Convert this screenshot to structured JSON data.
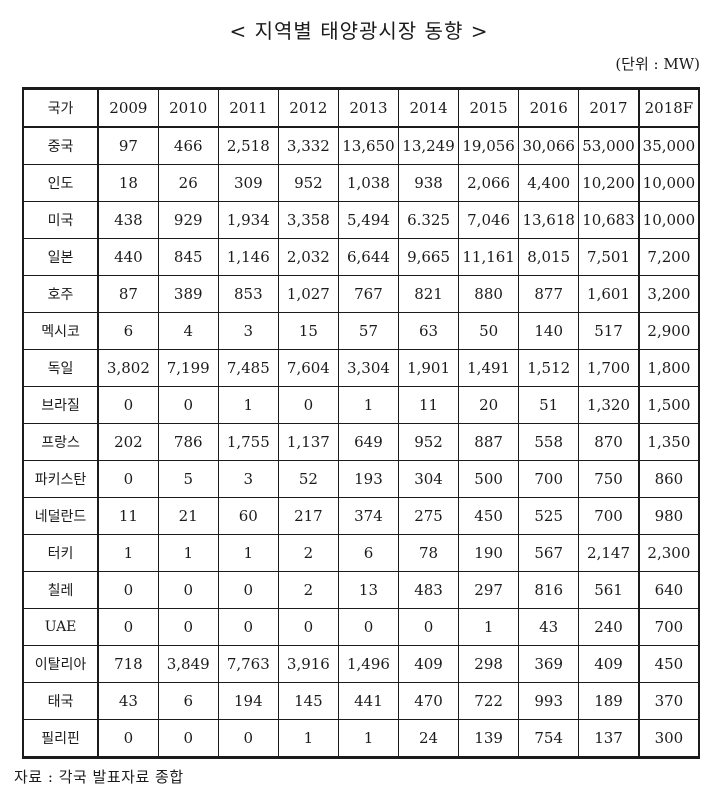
{
  "title": "< 지역별 태양광시장 동향 >",
  "unit_label": "(단위 : MW)",
  "source_note": "자료 : 각국 발표자료 종합",
  "table": {
    "columns": [
      "국가",
      "2009",
      "2010",
      "2011",
      "2012",
      "2013",
      "2014",
      "2015",
      "2016",
      "2017",
      "2018F"
    ],
    "rows": [
      {
        "country": "중국",
        "values": [
          "97",
          "466",
          "2,518",
          "3,332",
          "13,650",
          "13,249",
          "19,056",
          "30,066",
          "53,000",
          "35,000"
        ]
      },
      {
        "country": "인도",
        "values": [
          "18",
          "26",
          "309",
          "952",
          "1,038",
          "938",
          "2,066",
          "4,400",
          "10,200",
          "10,000"
        ]
      },
      {
        "country": "미국",
        "values": [
          "438",
          "929",
          "1,934",
          "3,358",
          "5,494",
          "6.325",
          "7,046",
          "13,618",
          "10,683",
          "10,000"
        ]
      },
      {
        "country": "일본",
        "values": [
          "440",
          "845",
          "1,146",
          "2,032",
          "6,644",
          "9,665",
          "11,161",
          "8,015",
          "7,501",
          "7,200"
        ]
      },
      {
        "country": "호주",
        "values": [
          "87",
          "389",
          "853",
          "1,027",
          "767",
          "821",
          "880",
          "877",
          "1,601",
          "3,200"
        ]
      },
      {
        "country": "멕시코",
        "values": [
          "6",
          "4",
          "3",
          "15",
          "57",
          "63",
          "50",
          "140",
          "517",
          "2,900"
        ]
      },
      {
        "country": "독일",
        "values": [
          "3,802",
          "7,199",
          "7,485",
          "7,604",
          "3,304",
          "1,901",
          "1,491",
          "1,512",
          "1,700",
          "1,800"
        ]
      },
      {
        "country": "브라질",
        "values": [
          "0",
          "0",
          "1",
          "0",
          "1",
          "11",
          "20",
          "51",
          "1,320",
          "1,500"
        ]
      },
      {
        "country": "프랑스",
        "values": [
          "202",
          "786",
          "1,755",
          "1,137",
          "649",
          "952",
          "887",
          "558",
          "870",
          "1,350"
        ]
      },
      {
        "country": "파키스탄",
        "values": [
          "0",
          "5",
          "3",
          "52",
          "193",
          "304",
          "500",
          "700",
          "750",
          "860"
        ]
      },
      {
        "country": "네덜란드",
        "values": [
          "11",
          "21",
          "60",
          "217",
          "374",
          "275",
          "450",
          "525",
          "700",
          "980"
        ]
      },
      {
        "country": "터키",
        "values": [
          "1",
          "1",
          "1",
          "2",
          "6",
          "78",
          "190",
          "567",
          "2,147",
          "2,300"
        ]
      },
      {
        "country": "칠레",
        "values": [
          "0",
          "0",
          "0",
          "2",
          "13",
          "483",
          "297",
          "816",
          "561",
          "640"
        ]
      },
      {
        "country": "UAE",
        "values": [
          "0",
          "0",
          "0",
          "0",
          "0",
          "0",
          "1",
          "43",
          "240",
          "700"
        ]
      },
      {
        "country": "이탈리아",
        "values": [
          "718",
          "3,849",
          "7,763",
          "3,916",
          "1,496",
          "409",
          "298",
          "369",
          "409",
          "450"
        ]
      },
      {
        "country": "태국",
        "values": [
          "43",
          "6",
          "194",
          "145",
          "441",
          "470",
          "722",
          "993",
          "189",
          "370"
        ]
      },
      {
        "country": "필리핀",
        "values": [
          "0",
          "0",
          "0",
          "1",
          "1",
          "24",
          "139",
          "754",
          "137",
          "300"
        ]
      }
    ]
  }
}
